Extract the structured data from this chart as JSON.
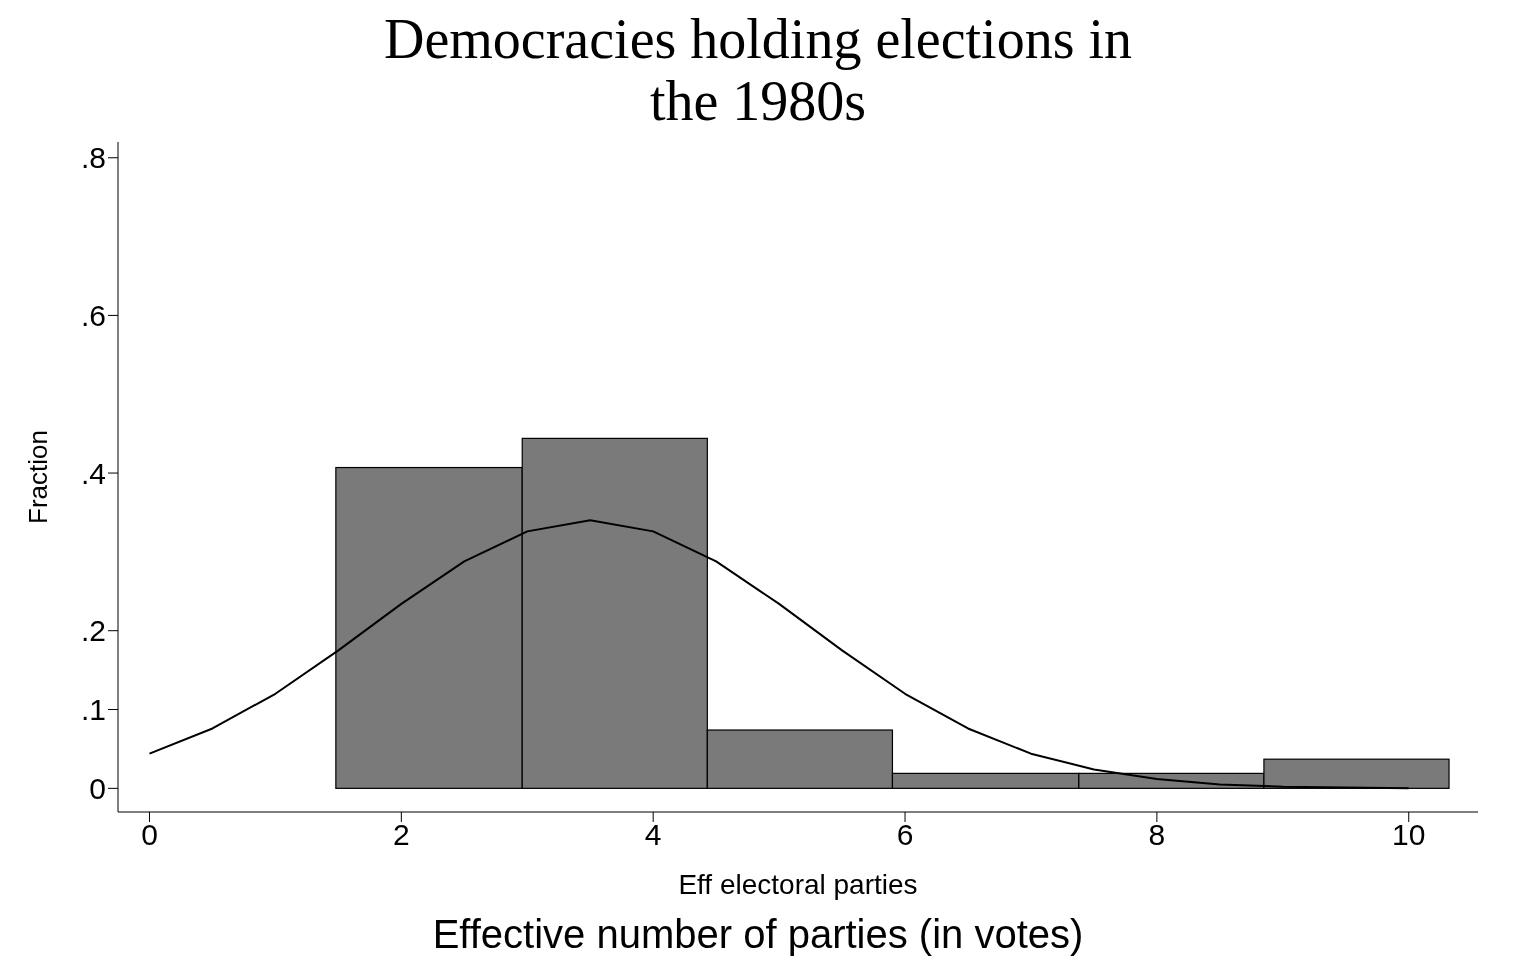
{
  "chart_data": {
    "type": "histogram",
    "title": "Democracies holding elections in the 1980s",
    "xlabel": "Eff electoral parties",
    "ylabel": "Fraction",
    "annotations": [
      "Effective number of parties (in votes)"
    ],
    "bins": [
      1.48,
      2.96,
      4.43,
      5.9,
      7.38,
      8.85,
      10.32
    ],
    "values": [
      0.407,
      0.444,
      0.074,
      0.019,
      0.019,
      0.037
    ],
    "color": "#7a7a7a",
    "series": [
      {
        "type": "line",
        "color": "#000000",
        "x": [
          0,
          0.5,
          1,
          1.5,
          2,
          2.5,
          3,
          3.5,
          4,
          4.5,
          5,
          5.5,
          6,
          6.5,
          7,
          7.5,
          8,
          8.5,
          9,
          9.5,
          10
        ],
        "values": [
          0.044,
          0.076,
          0.12,
          0.175,
          0.234,
          0.288,
          0.326,
          0.34,
          0.326,
          0.288,
          0.234,
          0.175,
          0.12,
          0.076,
          0.044,
          0.024,
          0.012,
          0.005,
          0.002,
          0.001,
          0
        ]
      }
    ],
    "marker": "none",
    "line_style": "solid",
    "grid": false,
    "legend": false,
    "xlim": [
      -0.25,
      10.55
    ],
    "xticks": [
      0,
      2,
      4,
      6,
      8,
      10
    ],
    "ylim": [
      -0.03,
      0.82
    ],
    "yticks": [
      {
        "value": 0,
        "label": "0"
      },
      {
        "value": 0.1,
        "label": ".1"
      },
      {
        "value": 0.2,
        "label": ".2"
      },
      {
        "value": 0.4,
        "label": ".4"
      },
      {
        "value": 0.6,
        "label": ".6"
      },
      {
        "value": 0.8,
        "label": ".8"
      }
    ]
  }
}
